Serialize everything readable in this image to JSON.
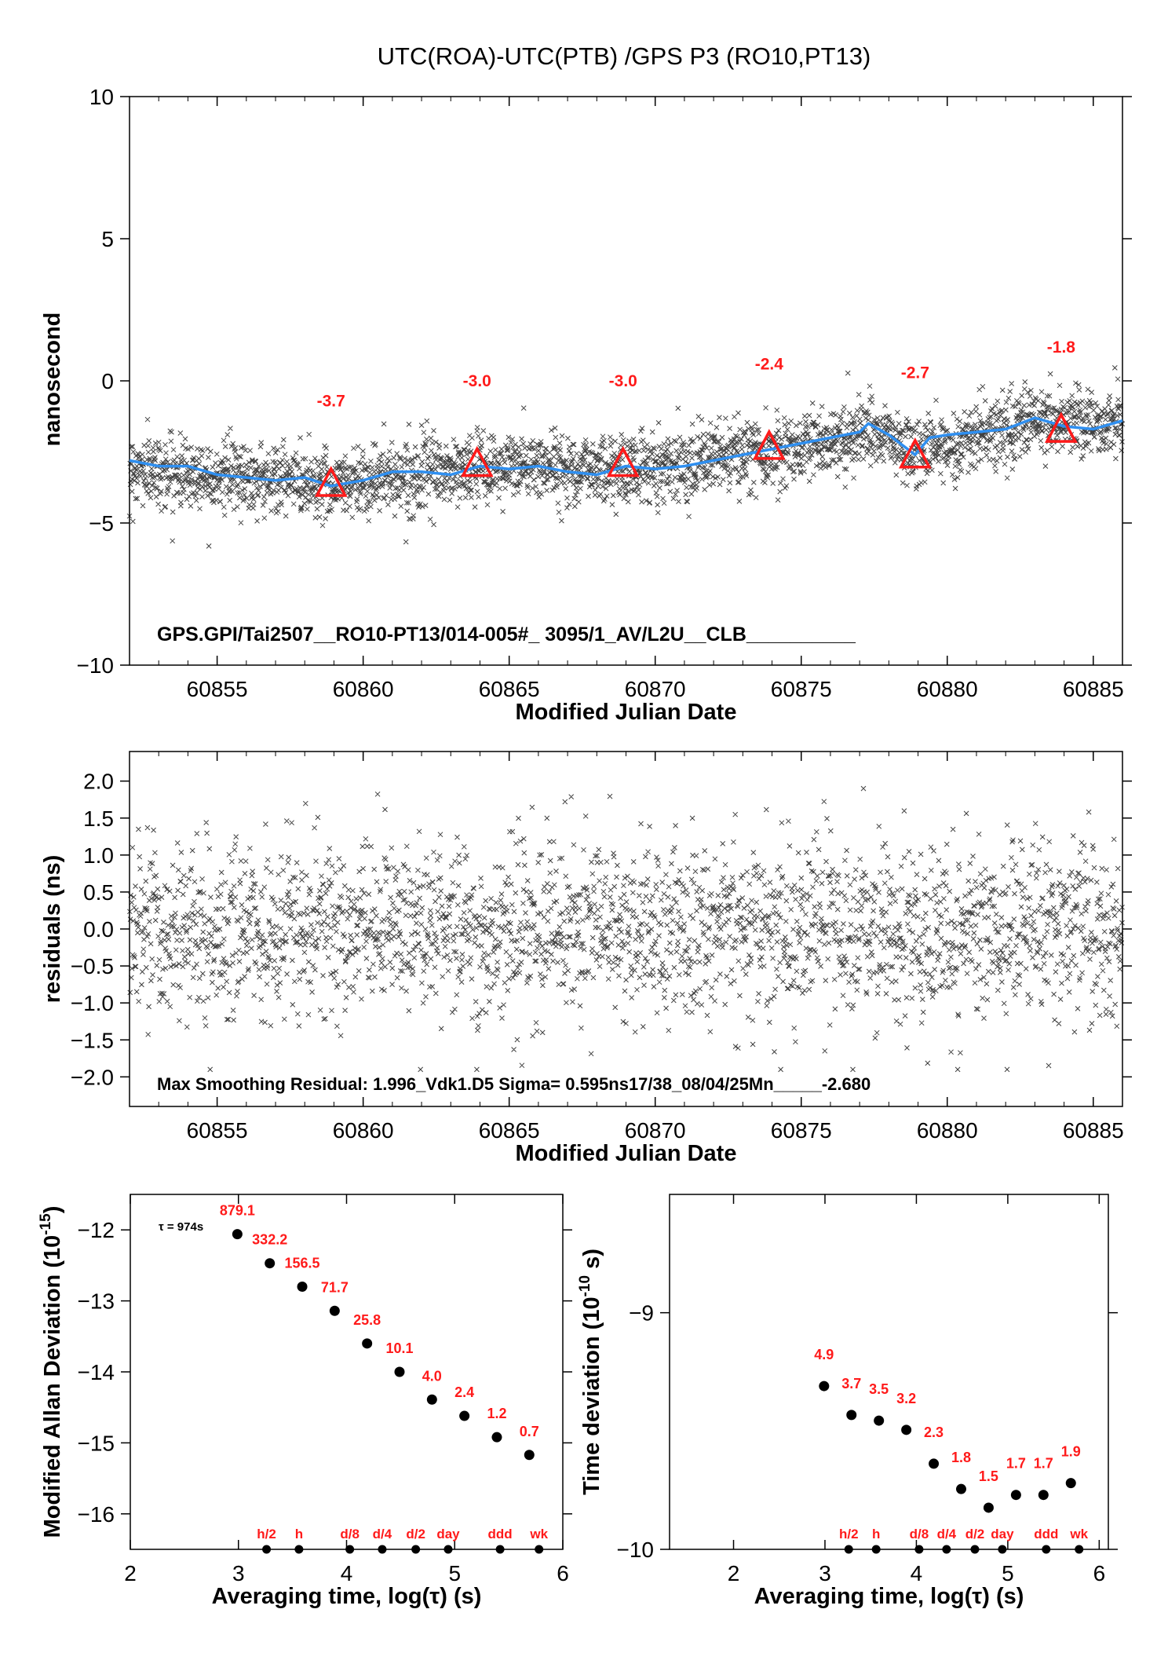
{
  "figure": {
    "title": "UTC(ROA)-UTC(PTB)  /GPS  P3  (RO10,PT13)"
  },
  "colors": {
    "smooth_line": "#2f8ff0",
    "triangles": "#ff1a1a",
    "red_text": "#ff1a1a",
    "points": "#000000"
  },
  "chart_data": [
    {
      "id": "time-series",
      "type": "scatter",
      "xlabel": "Modified Julian Date",
      "ylabel": "nanosecond",
      "xlim": [
        60852,
        60886
      ],
      "ylim": [
        -10,
        10
      ],
      "xticks": [
        60855,
        60860,
        60865,
        60870,
        60875,
        60880,
        60885
      ],
      "yticks": [
        -10,
        -5,
        0,
        5,
        10
      ],
      "ytick_labels": [
        "−10",
        "−5",
        "0",
        "5",
        "10"
      ],
      "annotation": "GPS.GPI/Tai2507__RO10-PT13/014-005#_  3095/1_AV/L2U__CLB__________",
      "smooth_series": {
        "x": [
          60852,
          60853,
          60854,
          60855,
          60856,
          60857,
          60858,
          60858.9,
          60860,
          60861,
          60862,
          60863,
          60864,
          60865,
          60866,
          60867,
          60868,
          60869,
          60870,
          60871,
          60872,
          60873,
          60874,
          60875,
          60876,
          60877,
          60877.3,
          60878,
          60878.9,
          60879.4,
          60880,
          60881,
          60882,
          60883,
          60884,
          60885,
          60886
        ],
        "y": [
          -2.8,
          -3.0,
          -3.0,
          -3.3,
          -3.4,
          -3.5,
          -3.4,
          -3.7,
          -3.5,
          -3.2,
          -3.2,
          -3.3,
          -3.0,
          -3.1,
          -3.0,
          -3.2,
          -3.3,
          -3.0,
          -3.1,
          -3.0,
          -2.8,
          -2.6,
          -2.4,
          -2.2,
          -2.0,
          -1.8,
          -1.5,
          -1.9,
          -2.6,
          -2.0,
          -1.9,
          -1.8,
          -1.7,
          -1.3,
          -1.6,
          -1.7,
          -1.4
        ]
      },
      "scatter_trend": {
        "x": [
          60852,
          60858.9,
          60865,
          60869,
          60874,
          60877.5,
          60878.9,
          60883,
          60886
        ],
        "y": [
          -3.1,
          -3.6,
          -3.0,
          -3.1,
          -2.5,
          -1.8,
          -2.6,
          -1.4,
          -1.5
        ]
      },
      "scatter_noise_sd": 0.6,
      "scatter_count": 3000,
      "triangles": [
        {
          "x": 60858.9,
          "y": -3.7,
          "label": "-3.7",
          "label_y": -0.9
        },
        {
          "x": 60863.9,
          "y": -3.0,
          "label": "-3.0",
          "label_y": -0.2
        },
        {
          "x": 60868.9,
          "y": -3.0,
          "label": "-3.0",
          "label_y": -0.2
        },
        {
          "x": 60873.9,
          "y": -2.4,
          "label": "-2.4",
          "label_y": 0.4
        },
        {
          "x": 60878.9,
          "y": -2.7,
          "label": "-2.7",
          "label_y": 0.1
        },
        {
          "x": 60883.9,
          "y": -1.8,
          "label": "-1.8",
          "label_y": 1.0
        }
      ]
    },
    {
      "id": "residuals",
      "type": "scatter",
      "xlabel": "Modified Julian Date",
      "ylabel": "residuals (ns)",
      "xlim": [
        60852,
        60886
      ],
      "ylim": [
        -2.4,
        2.4
      ],
      "xticks": [
        60855,
        60860,
        60865,
        60870,
        60875,
        60880,
        60885
      ],
      "yticks": [
        -2.0,
        -1.5,
        -1.0,
        -0.5,
        0.0,
        0.5,
        1.0,
        1.5,
        2.0
      ],
      "ytick_labels": [
        "−2.0",
        "−1.5",
        "−1.0",
        "−0.5",
        "0.0",
        "0.5",
        "1.0",
        "1.5",
        "2.0"
      ],
      "annotation": "Max Smoothing Residual: 1.996_Vdk1.D5  Sigma= 0.595ns17/38_08/04/25Mn_____-2.680",
      "scatter_noise_sd": 0.6,
      "scatter_count": 2600
    },
    {
      "id": "modified-allan-deviation",
      "type": "scatter",
      "xlabel": "Averaging time, log(τ) (s)",
      "ylabel": "Modified Allan Deviation (10",
      "ylabel_sup": "-15",
      "ylabel_end": ")",
      "xlim": [
        2,
        6
      ],
      "ylim": [
        -16.5,
        -11.5
      ],
      "xticks": [
        2,
        3,
        4,
        5,
        6
      ],
      "yticks": [
        -16,
        -15,
        -14,
        -13,
        -12
      ],
      "ytick_labels": [
        "−16",
        "−15",
        "−14",
        "−13",
        "−12"
      ],
      "tau_label": "τ = 974s",
      "points": [
        {
          "x": 2.99,
          "y": -12.06,
          "label": "879.1"
        },
        {
          "x": 3.29,
          "y": -12.47,
          "label": "332.2"
        },
        {
          "x": 3.59,
          "y": -12.8,
          "label": "156.5"
        },
        {
          "x": 3.89,
          "y": -13.14,
          "label": "71.7"
        },
        {
          "x": 4.19,
          "y": -13.6,
          "label": "25.8"
        },
        {
          "x": 4.49,
          "y": -14.0,
          "label": "10.1"
        },
        {
          "x": 4.79,
          "y": -14.39,
          "label": "4.0"
        },
        {
          "x": 5.09,
          "y": -14.62,
          "label": "2.4"
        },
        {
          "x": 5.39,
          "y": -14.92,
          "label": "1.2"
        },
        {
          "x": 5.69,
          "y": -15.17,
          "label": "0.7"
        }
      ],
      "markers": [
        {
          "x": 3.26,
          "label": "h/2"
        },
        {
          "x": 3.56,
          "label": "h"
        },
        {
          "x": 4.03,
          "label": "d/8"
        },
        {
          "x": 4.33,
          "label": "d/4"
        },
        {
          "x": 4.64,
          "label": "d/2"
        },
        {
          "x": 4.94,
          "label": "day"
        },
        {
          "x": 5.42,
          "label": "ddd"
        },
        {
          "x": 5.78,
          "label": "wk"
        }
      ],
      "marker_y": -16.5
    },
    {
      "id": "time-deviation",
      "type": "scatter",
      "xlabel": "Averaging time, log(τ) (s)",
      "ylabel": "Time deviation (10",
      "ylabel_sup": "-10",
      "ylabel_end": " s)",
      "xlim": [
        1.3,
        6.1
      ],
      "ylim": [
        -10,
        -8.5
      ],
      "xticks": [
        2,
        3,
        4,
        5,
        6
      ],
      "yticks": [
        -10,
        -9
      ],
      "ytick_labels": [
        "−10",
        "−9"
      ],
      "points": [
        {
          "x": 2.99,
          "y": -9.31,
          "label": "4.9"
        },
        {
          "x": 3.29,
          "y": -9.432,
          "label": "3.7"
        },
        {
          "x": 3.59,
          "y": -9.456,
          "label": "3.5"
        },
        {
          "x": 3.89,
          "y": -9.495,
          "label": "3.2"
        },
        {
          "x": 4.19,
          "y": -9.638,
          "label": "2.3"
        },
        {
          "x": 4.49,
          "y": -9.745,
          "label": "1.8"
        },
        {
          "x": 4.79,
          "y": -9.824,
          "label": "1.5"
        },
        {
          "x": 5.09,
          "y": -9.77,
          "label": "1.7"
        },
        {
          "x": 5.39,
          "y": -9.77,
          "label": "1.7"
        },
        {
          "x": 5.69,
          "y": -9.72,
          "label": "1.9"
        }
      ],
      "markers": [
        {
          "x": 3.26,
          "label": "h/2"
        },
        {
          "x": 3.56,
          "label": "h"
        },
        {
          "x": 4.03,
          "label": "d/8"
        },
        {
          "x": 4.33,
          "label": "d/4"
        },
        {
          "x": 4.64,
          "label": "d/2"
        },
        {
          "x": 4.94,
          "label": "day"
        },
        {
          "x": 5.42,
          "label": "ddd"
        },
        {
          "x": 5.78,
          "label": "wk"
        }
      ],
      "marker_y": -10.0
    }
  ]
}
